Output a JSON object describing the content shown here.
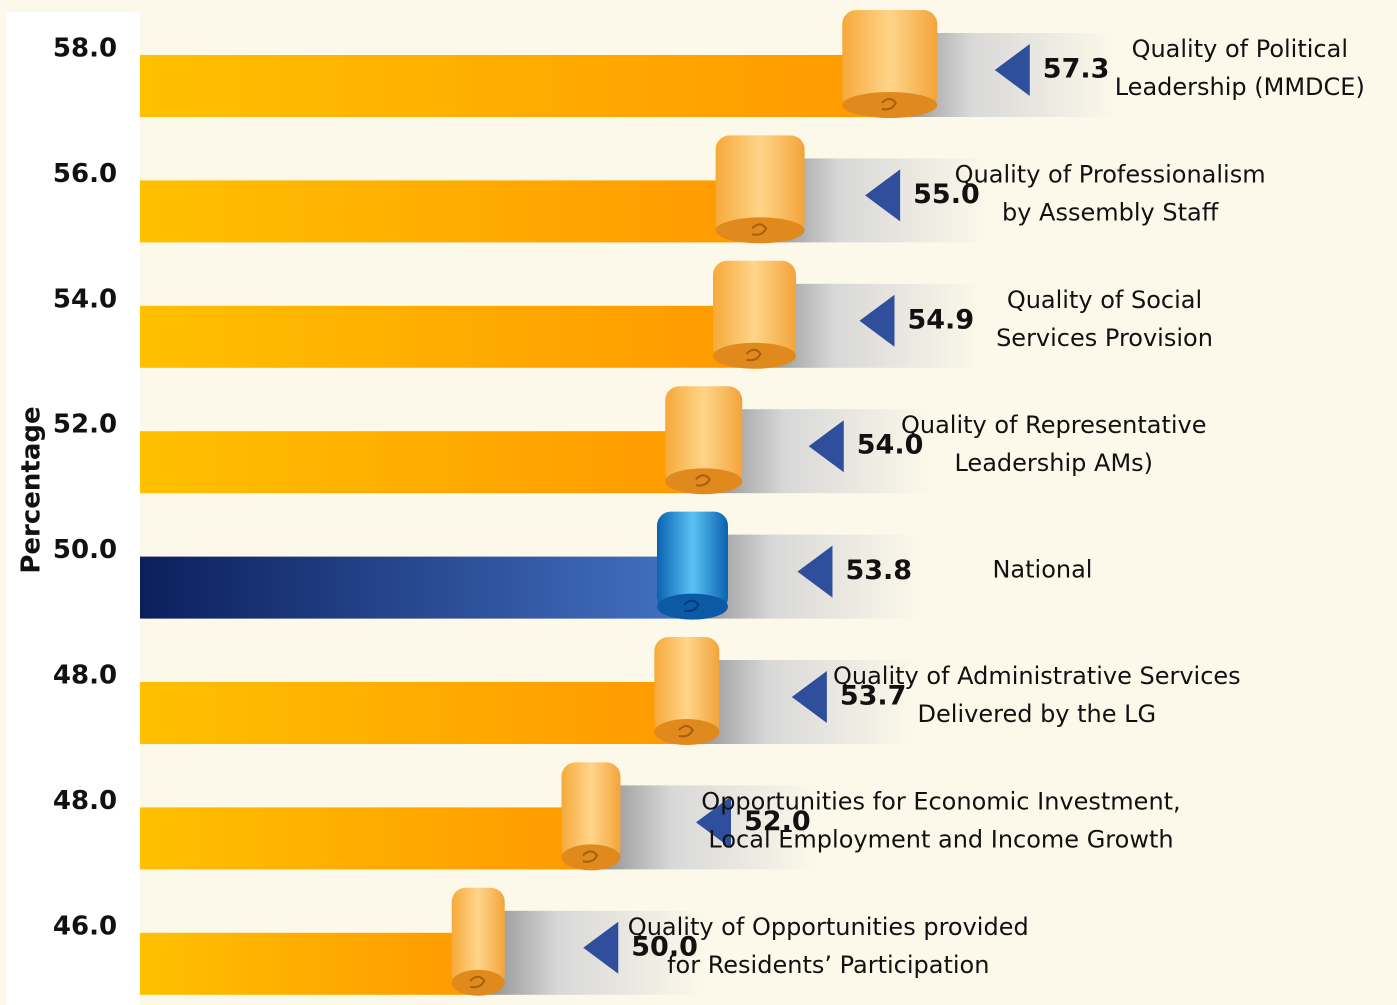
{
  "chart_data": {
    "type": "bar",
    "orientation": "horizontal",
    "y_axis_label": "Percentage",
    "row_labels": [
      "58.0",
      "56.0",
      "54.0",
      "52.0",
      "50.0",
      "48.0",
      "48.0",
      "46.0"
    ],
    "categories": [
      [
        "Quality of Political",
        "Leadership (MMDCE)"
      ],
      [
        "Quality of Professionalism",
        "by Assembly Staff"
      ],
      [
        "Quality of Social",
        "Services Provision"
      ],
      [
        "Quality of Representative",
        "Leadership AMs)"
      ],
      [
        "National"
      ],
      [
        "Quality of Administrative Services",
        "Delivered by the LG"
      ],
      [
        "Opportunities for Economic Investment,",
        "Local Employment and Income Growth"
      ],
      [
        "Quality of Opportunities provided",
        "for Residents’ Participation"
      ]
    ],
    "values": [
      57.3,
      55.0,
      54.9,
      54.0,
      53.8,
      53.7,
      52.0,
      50.0
    ],
    "value_labels": [
      "57.3",
      "55.0",
      "54.9",
      "54.0",
      "53.8",
      "53.7",
      "52.0",
      "50.0"
    ],
    "colors": [
      "#ff9900",
      "#ff9900",
      "#ff9900",
      "#ff9900",
      "#4472c4",
      "#ff9900",
      "#ff9900",
      "#ff9900"
    ],
    "xlim": [
      44,
      60
    ]
  }
}
